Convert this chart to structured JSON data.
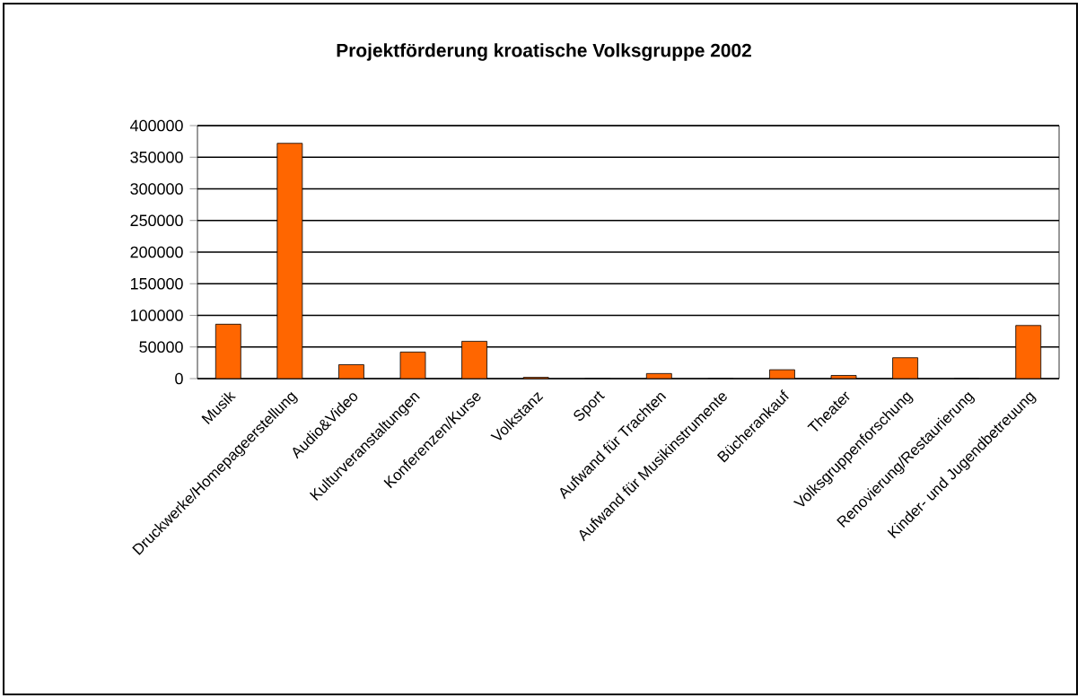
{
  "chart_data": {
    "type": "bar",
    "title": "Projektförderung kroatische Volksgruppe 2002",
    "categories": [
      "Musik",
      "Druckwerke/Homepageerstellung",
      "Audio&Video",
      "Kulturveranstaltungen",
      "Konferenzen/Kurse",
      "Volkstanz",
      "Sport",
      "Aufwand für Trachten",
      "Aufwand für Musikinstrumente",
      "Bücherankauf",
      "Theater",
      "Volksgruppenforschung",
      "Renovierung/Restaurierung",
      "Kinder- und Jugendbetreuung"
    ],
    "values": [
      86000,
      372000,
      22000,
      42000,
      59000,
      2000,
      0,
      8000,
      0,
      14000,
      5000,
      33000,
      0,
      84000
    ],
    "color": "#ff6600",
    "ylim": [
      0,
      400000
    ],
    "yticks": [
      0,
      50000,
      100000,
      150000,
      200000,
      250000,
      300000,
      350000,
      400000
    ],
    "grid": "y"
  }
}
